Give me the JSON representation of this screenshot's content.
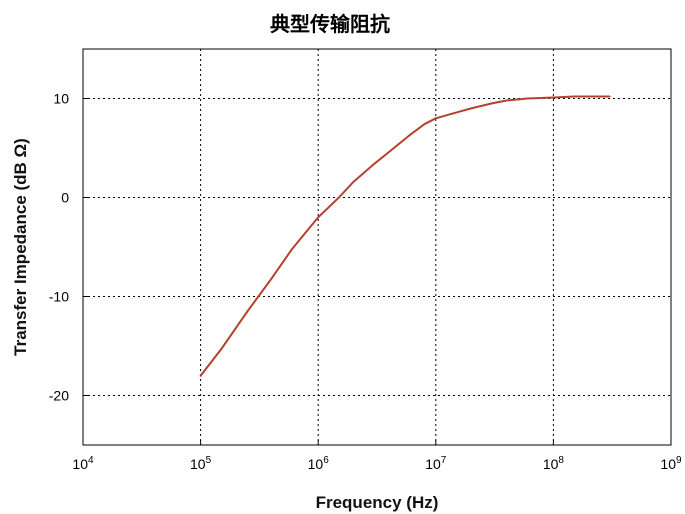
{
  "chart_data": {
    "type": "line",
    "title": "典型传输阻抗",
    "xlabel": "Frequency (Hz)",
    "ylabel": "Transfer Impedance (dB Ω)",
    "x_scale": "log",
    "xlim": [
      10000,
      1000000000
    ],
    "ylim": [
      -25,
      15
    ],
    "x_ticks": [
      {
        "value": 10000,
        "base": "10",
        "exp": "4"
      },
      {
        "value": 100000,
        "base": "10",
        "exp": "5"
      },
      {
        "value": 1000000,
        "base": "10",
        "exp": "6"
      },
      {
        "value": 10000000,
        "base": "10",
        "exp": "7"
      },
      {
        "value": 100000000,
        "base": "10",
        "exp": "8"
      },
      {
        "value": 1000000000,
        "base": "10",
        "exp": "9"
      }
    ],
    "y_ticks": [
      10,
      0,
      -10,
      -20
    ],
    "grid": true,
    "series": [
      {
        "color": "#b5412c",
        "x": [
          100000,
          150000,
          250000,
          400000,
          600000,
          1000000,
          1500000,
          2000000,
          3000000,
          4000000,
          6000000,
          8000000,
          10000000,
          15000000,
          20000000,
          30000000,
          40000000,
          60000000,
          100000000,
          150000000,
          200000000,
          300000000
        ],
        "y": [
          -18,
          -15.3,
          -11.5,
          -8.2,
          -5.2,
          -2.0,
          0.0,
          1.6,
          3.4,
          4.6,
          6.3,
          7.4,
          8.0,
          8.6,
          9.0,
          9.5,
          9.8,
          10.0,
          10.1,
          10.2,
          10.2,
          10.2
        ]
      }
    ]
  }
}
